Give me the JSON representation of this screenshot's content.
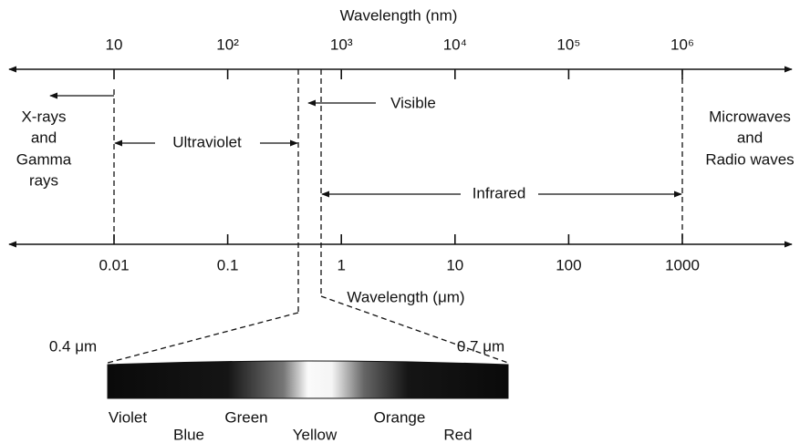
{
  "top_axis": {
    "title": "Wavelength (nm)",
    "ticks": [
      "10",
      "10²",
      "10³",
      "10⁴",
      "10⁵",
      "10⁶"
    ]
  },
  "bottom_axis": {
    "title": "Wavelength (μm)",
    "ticks": [
      "0.01",
      "0.1",
      "1",
      "10",
      "100",
      "1000"
    ]
  },
  "regions": {
    "xrays": [
      "X-rays",
      "and",
      "Gamma",
      "rays"
    ],
    "ultraviolet": "Ultraviolet",
    "visible": "Visible",
    "infrared": "Infrared",
    "radio": [
      "Microwaves",
      "and",
      "Radio waves"
    ]
  },
  "spectrum": {
    "left_label": "0.4 μm",
    "right_label": "0.7 μm",
    "colors": [
      "Violet",
      "Blue",
      "Green",
      "Yellow",
      "Orange",
      "Red"
    ]
  }
}
